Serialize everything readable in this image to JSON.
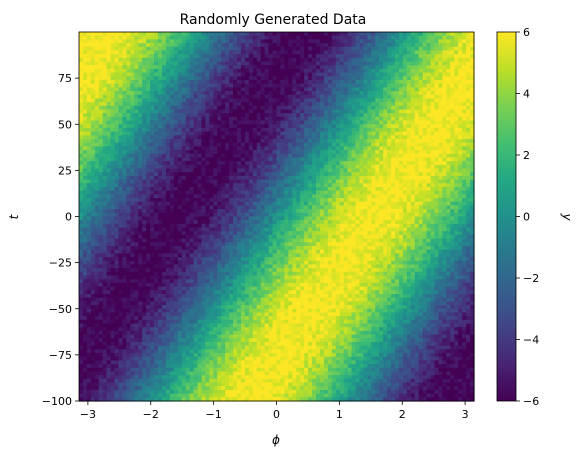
{
  "chart_data": {
    "type": "heatmap",
    "title": "Randomly Generated Data",
    "xlabel": "ϕ",
    "ylabel": "t",
    "colorbar_label": "y",
    "xlim": [
      -3.1416,
      3.1416
    ],
    "ylim": [
      -100,
      100
    ],
    "clim": [
      -6,
      6
    ],
    "colormap": "viridis",
    "x_ticks": [
      -3,
      -2,
      -1,
      0,
      1,
      2,
      3
    ],
    "x_tick_labels": [
      "−3",
      "−2",
      "−1",
      "0",
      "1",
      "2",
      "3"
    ],
    "y_ticks": [
      -100,
      -75,
      -50,
      -25,
      0,
      25,
      50,
      75
    ],
    "y_tick_labels": [
      "−100",
      "−75",
      "−50",
      "−25",
      "0",
      "25",
      "50",
      "75"
    ],
    "colorbar_ticks": [
      -6,
      -4,
      -2,
      0,
      2,
      4,
      6
    ],
    "colorbar_tick_labels": [
      "−6",
      "−4",
      "−2",
      "0",
      "2",
      "4",
      "6"
    ],
    "grid": false
  }
}
